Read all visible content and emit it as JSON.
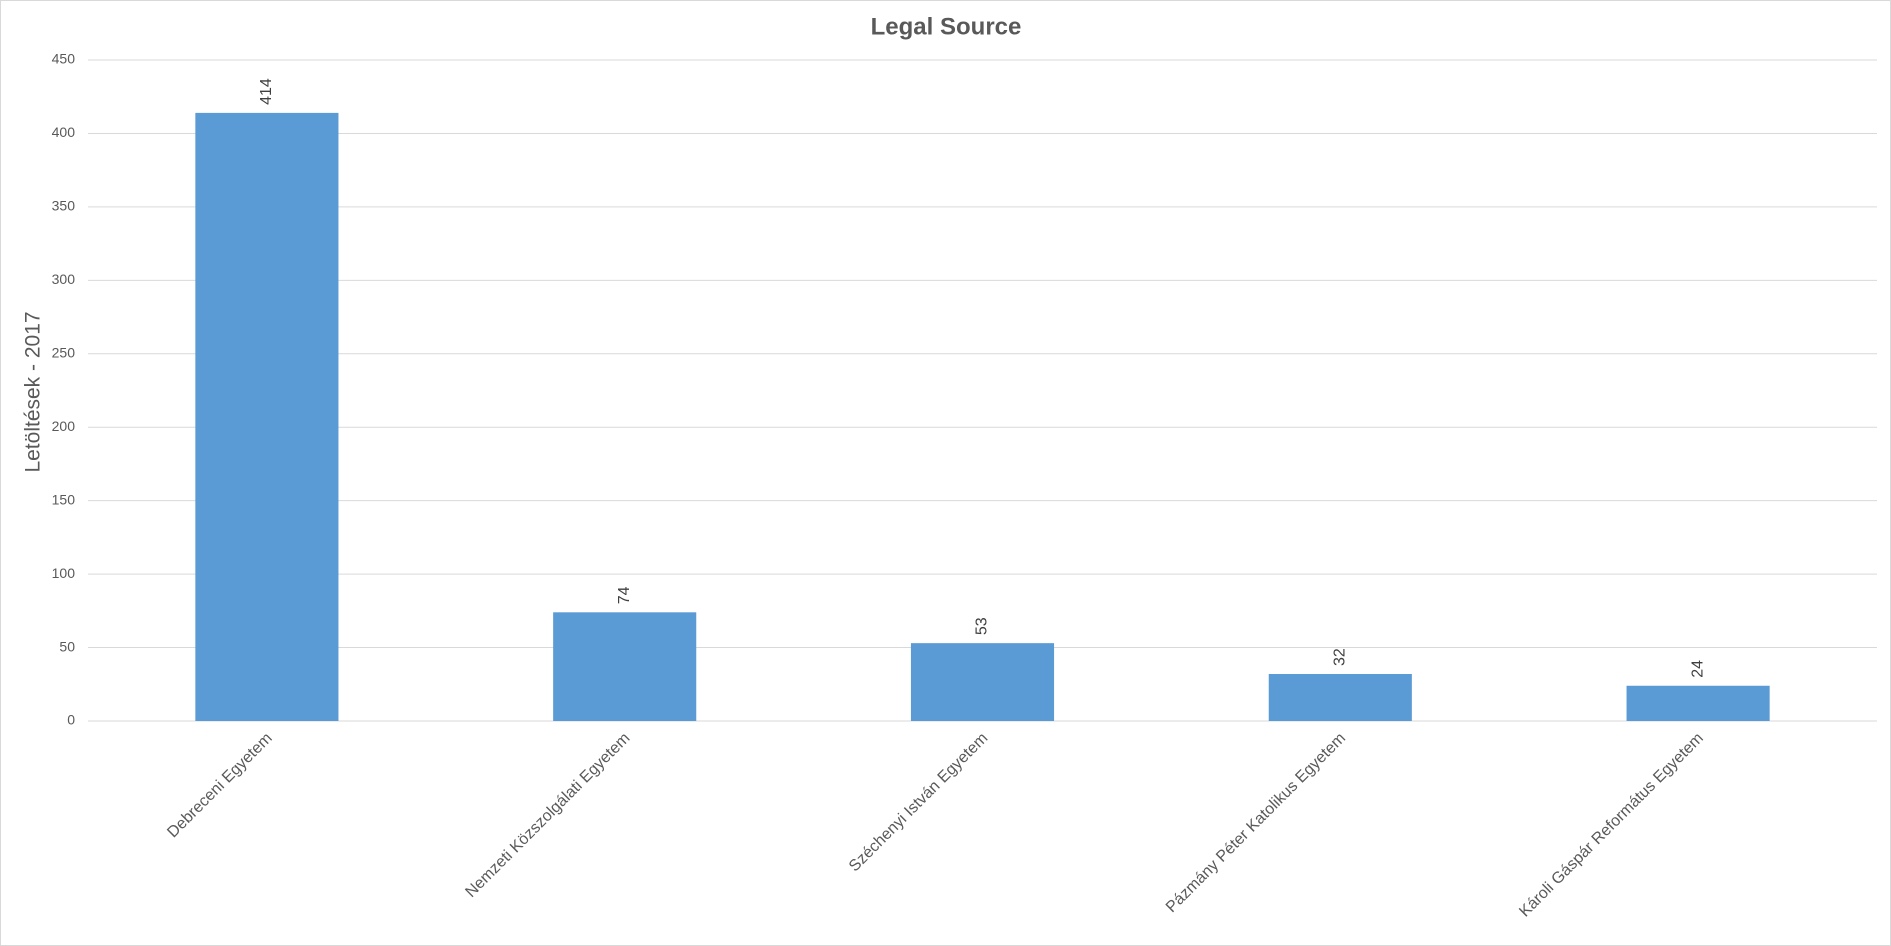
{
  "chart_data": {
    "type": "bar",
    "title": "Legal Source",
    "ylabel": "Letöltések - 2017",
    "categories": [
      "Debreceni Egyetem",
      "Nemzeti Közszolgálati Egyetem",
      "Széchenyi István Egyetem",
      "Pázmány Péter Katolikus Egyetem",
      "Károli Gáspár Református Egyetem"
    ],
    "values": [
      414,
      74,
      53,
      32,
      24
    ],
    "color": "#5b9bd5",
    "ylim": [
      0,
      450
    ],
    "yticks": [
      0,
      50,
      100,
      150,
      200,
      250,
      300,
      350,
      400,
      450
    ],
    "grid": true
  }
}
